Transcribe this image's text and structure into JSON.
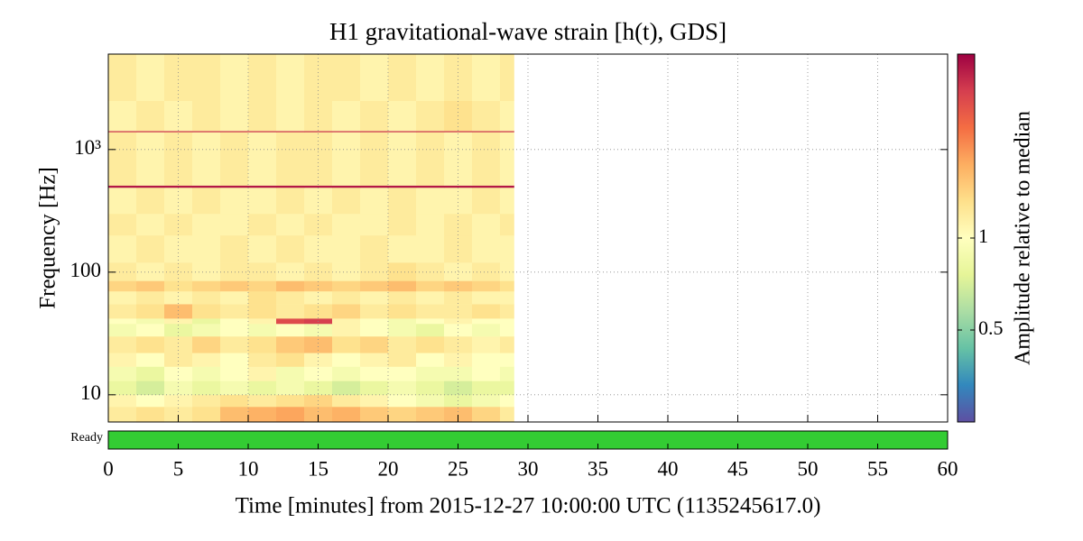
{
  "chart_data": {
    "type": "spectrogram",
    "title": "H1 gravitational-wave strain [h(t), GDS]",
    "xlabel": "Time [minutes] from 2015-12-27 10:00:00 UTC (1135245617.0)",
    "ylabel": "Frequency [Hz]",
    "xlim": [
      0,
      60
    ],
    "xticks": [
      0,
      5,
      10,
      15,
      20,
      25,
      30,
      35,
      40,
      45,
      50,
      55,
      60
    ],
    "ylim": [
      6,
      6000
    ],
    "yscale": "log",
    "yticks": [
      10,
      100,
      {
        "value": 1000,
        "label": "10³"
      }
    ],
    "grid": true,
    "time_edges": [
      0,
      2,
      4,
      6,
      8,
      10,
      12,
      14,
      16,
      18,
      20,
      22,
      24,
      26,
      28,
      29
    ],
    "frequency_edges": [
      6,
      8,
      10,
      13,
      17,
      22,
      30,
      38,
      42,
      55,
      70,
      85,
      120,
      200,
      300,
      490,
      510,
      1390,
      1420,
      2500,
      6000
    ],
    "values": [
      [
        1.2,
        1.3,
        1.2,
        1.3,
        1.6,
        1.7,
        1.8,
        1.6,
        1.7,
        1.5,
        1.4,
        1.5,
        1.6,
        1.4,
        1.2
      ],
      [
        1.1,
        1.0,
        1.1,
        1.2,
        1.3,
        1.2,
        1.3,
        1.4,
        1.2,
        1.1,
        1.0,
        0.9,
        0.8,
        0.9,
        1.0
      ],
      [
        0.8,
        0.7,
        0.9,
        0.8,
        0.9,
        0.8,
        0.9,
        0.8,
        0.7,
        0.8,
        0.9,
        0.8,
        0.7,
        0.8,
        0.8
      ],
      [
        0.9,
        0.8,
        1.0,
        0.9,
        1.0,
        1.1,
        0.9,
        1.0,
        0.9,
        1.0,
        1.0,
        0.9,
        0.9,
        1.0,
        0.9
      ],
      [
        1.1,
        1.0,
        1.2,
        1.1,
        1.0,
        1.2,
        1.3,
        1.1,
        1.0,
        1.1,
        1.2,
        1.0,
        1.1,
        1.0,
        1.0
      ],
      [
        1.2,
        1.3,
        1.2,
        1.4,
        1.2,
        1.3,
        1.5,
        1.6,
        1.3,
        1.4,
        1.2,
        1.3,
        1.2,
        1.1,
        1.2
      ],
      [
        0.9,
        1.0,
        0.8,
        0.9,
        1.0,
        0.9,
        1.0,
        0.9,
        1.1,
        1.0,
        0.9,
        0.8,
        1.0,
        0.9,
        1.0
      ],
      [
        1.0,
        0.9,
        1.1,
        0.8,
        1.0,
        1.1,
        2.8,
        3.0,
        1.1,
        1.0,
        0.9,
        1.0,
        1.1,
        1.0,
        1.0
      ],
      [
        1.2,
        1.3,
        1.6,
        1.3,
        1.2,
        1.3,
        1.2,
        1.3,
        1.4,
        1.2,
        1.3,
        1.2,
        1.2,
        1.3,
        1.2
      ],
      [
        1.1,
        1.2,
        1.1,
        1.2,
        1.1,
        1.3,
        1.2,
        1.1,
        1.2,
        1.1,
        1.2,
        1.1,
        1.2,
        1.1,
        1.1
      ],
      [
        1.4,
        1.5,
        1.3,
        1.4,
        1.5,
        1.4,
        1.6,
        1.5,
        1.4,
        1.5,
        1.6,
        1.4,
        1.5,
        1.4,
        1.3
      ],
      [
        1.2,
        1.1,
        1.2,
        1.1,
        1.2,
        1.2,
        1.1,
        1.2,
        1.1,
        1.2,
        1.3,
        1.2,
        1.1,
        1.2,
        1.1
      ],
      [
        1.1,
        1.2,
        1.1,
        1.1,
        1.2,
        1.1,
        1.2,
        1.1,
        1.1,
        1.2,
        1.1,
        1.1,
        1.2,
        1.1,
        1.1
      ],
      [
        1.2,
        1.1,
        1.2,
        1.1,
        1.1,
        1.2,
        1.1,
        1.2,
        1.1,
        1.1,
        1.2,
        1.1,
        1.2,
        1.1,
        1.2
      ],
      [
        1.1,
        1.2,
        1.1,
        1.2,
        1.1,
        1.1,
        1.2,
        1.1,
        1.2,
        1.1,
        1.2,
        1.1,
        1.1,
        1.2,
        1.1
      ],
      [
        3.6,
        3.6,
        3.6,
        3.6,
        3.6,
        3.6,
        3.6,
        3.6,
        3.6,
        3.6,
        3.6,
        3.6,
        3.6,
        3.6,
        3.6
      ],
      [
        1.2,
        1.1,
        1.2,
        1.1,
        1.2,
        1.1,
        1.2,
        1.2,
        1.1,
        1.2,
        1.1,
        1.2,
        1.1,
        1.2,
        1.1
      ],
      [
        3.2,
        3.2,
        3.2,
        3.2,
        3.2,
        3.2,
        3.2,
        3.2,
        3.2,
        3.2,
        3.2,
        3.2,
        3.2,
        3.2,
        3.2
      ],
      [
        1.1,
        1.2,
        1.1,
        1.2,
        1.1,
        1.2,
        1.1,
        1.2,
        1.1,
        1.2,
        1.1,
        1.2,
        1.3,
        1.2,
        1.1
      ],
      [
        1.2,
        1.1,
        1.2,
        1.2,
        1.1,
        1.2,
        1.1,
        1.2,
        1.2,
        1.1,
        1.2,
        1.1,
        1.2,
        1.1,
        1.2
      ]
    ],
    "colormap": [
      "#5e4fa2",
      "#3288bd",
      "#66c2a5",
      "#abdda4",
      "#e6f598",
      "#ffffbf",
      "#fee08b",
      "#fdae61",
      "#f46d43",
      "#d53e4f",
      "#9e0142"
    ],
    "clim": [
      0.25,
      4
    ],
    "cscale": "log",
    "colorbar_label": "Amplitude relative to median",
    "colorbar_ticks": [
      0.5,
      1
    ],
    "segments": [
      {
        "name": "Ready",
        "color": "#33cc33",
        "start": 0,
        "end": 60
      }
    ]
  }
}
